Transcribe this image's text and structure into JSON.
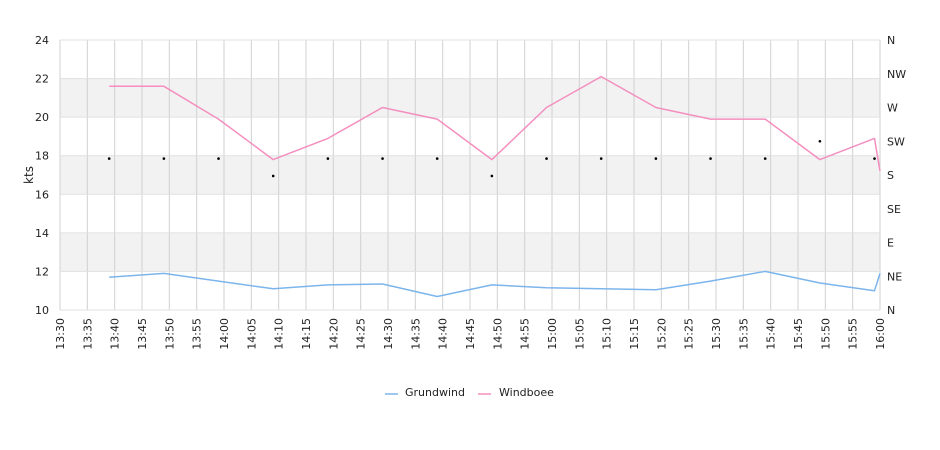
{
  "chart_data": {
    "type": "line",
    "ylabel": "kts",
    "ylim": [
      10,
      24
    ],
    "yticks": [
      10,
      12,
      14,
      16,
      18,
      20,
      22,
      24
    ],
    "y2ticks": [
      "N",
      "NE",
      "E",
      "SE",
      "S",
      "SW",
      "W",
      "NW",
      "N"
    ],
    "xticks": [
      "13:30",
      "13:35",
      "13:40",
      "13:45",
      "13:50",
      "13:55",
      "14:00",
      "14:05",
      "14:10",
      "14:15",
      "14:20",
      "14:25",
      "14:30",
      "14:35",
      "14:40",
      "14:45",
      "14:50",
      "14:55",
      "15:00",
      "15:05",
      "15:10",
      "15:15",
      "15:20",
      "15:25",
      "15:30",
      "15:35",
      "15:40",
      "15:45",
      "15:50",
      "15:55",
      "16:00"
    ],
    "xrange": [
      "13:30",
      "16:00"
    ],
    "grid": true,
    "legend_position": "bottom",
    "series": [
      {
        "name": "Grundwind",
        "color": "#7cb5ec",
        "x": [
          "13:39",
          "13:49",
          "13:59",
          "14:09",
          "14:19",
          "14:29",
          "14:39",
          "14:49",
          "14:59",
          "15:09",
          "15:19",
          "15:29",
          "15:39",
          "15:49",
          "15:59",
          "16:00"
        ],
        "values": [
          11.7,
          11.9,
          11.5,
          11.1,
          11.3,
          11.35,
          10.7,
          11.3,
          11.15,
          11.1,
          11.05,
          11.5,
          12.0,
          11.4,
          11.0,
          11.9
        ]
      },
      {
        "name": "Windboee",
        "color": "#f48fbf",
        "x": [
          "13:39",
          "13:49",
          "13:59",
          "14:09",
          "14:19",
          "14:29",
          "14:39",
          "14:49",
          "14:59",
          "15:09",
          "15:19",
          "15:29",
          "15:39",
          "15:49",
          "15:59",
          "16:00"
        ],
        "values": [
          21.6,
          21.6,
          19.9,
          17.8,
          18.9,
          20.5,
          19.9,
          17.8,
          20.5,
          22.1,
          20.5,
          19.9,
          19.9,
          17.8,
          18.9,
          17.2
        ]
      }
    ],
    "direction_points": {
      "x": [
        "13:39",
        "13:49",
        "13:59",
        "14:09",
        "14:19",
        "14:29",
        "14:39",
        "14:49",
        "14:59",
        "15:09",
        "15:19",
        "15:29",
        "15:39",
        "15:49",
        "15:59"
      ],
      "values": [
        17.85,
        17.85,
        17.85,
        16.95,
        17.85,
        17.85,
        17.85,
        16.95,
        17.85,
        17.85,
        17.85,
        17.85,
        17.85,
        18.75,
        17.85
      ]
    }
  }
}
